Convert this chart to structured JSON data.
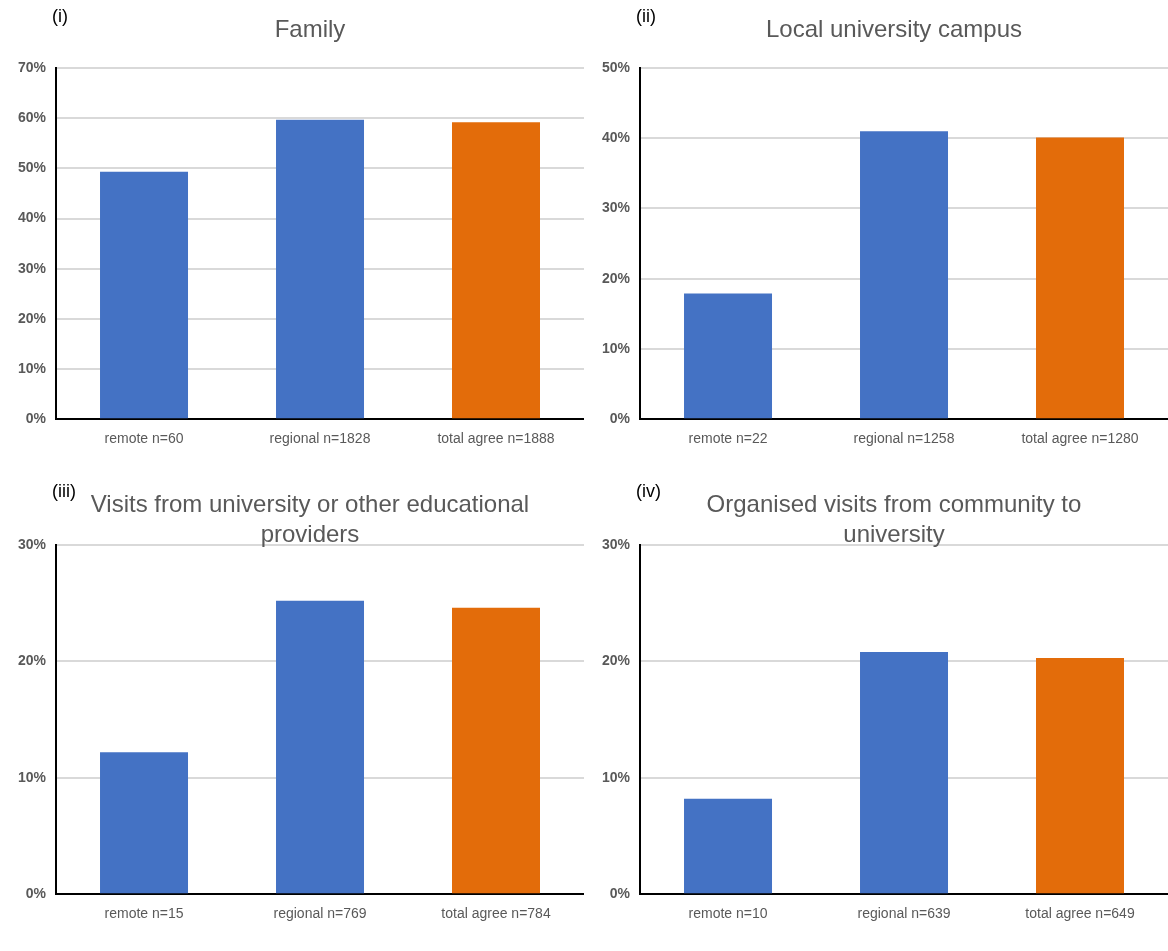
{
  "chart_data": [
    {
      "type": "bar",
      "title": "Family",
      "annotations": [
        "(i)"
      ],
      "categories": [
        "remote n=60",
        "regional n=1828",
        "total agree n=1888"
      ],
      "values": [
        49.3,
        59.7,
        59.2
      ],
      "colors": [
        "#4472c4",
        "#4472c4",
        "#e36c0a"
      ],
      "ylim": [
        0,
        70
      ],
      "yticks": [
        {
          "value": 0,
          "label": "0%"
        },
        {
          "value": 10,
          "label": "10%"
        },
        {
          "value": 20,
          "label": "20%"
        },
        {
          "value": 30,
          "label": "30%"
        },
        {
          "value": 40,
          "label": "40%"
        },
        {
          "value": 50,
          "label": "50%"
        },
        {
          "value": 60,
          "label": "60%"
        },
        {
          "value": 70,
          "label": "70%"
        }
      ],
      "grid": "y",
      "legend": false
    },
    {
      "type": "bar",
      "title": "Local university campus",
      "annotations": [
        "(ii)"
      ],
      "categories": [
        "remote n=22",
        "regional n=1258",
        "total agree n=1280"
      ],
      "values": [
        17.9,
        41,
        40.1
      ],
      "colors": [
        "#4472c4",
        "#4472c4",
        "#e36c0a"
      ],
      "ylim": [
        0,
        50
      ],
      "yticks": [
        {
          "value": 0,
          "label": "0%"
        },
        {
          "value": 10,
          "label": "10%"
        },
        {
          "value": 20,
          "label": "20%"
        },
        {
          "value": 30,
          "label": "30%"
        },
        {
          "value": 40,
          "label": "40%"
        },
        {
          "value": 50,
          "label": "50%"
        }
      ],
      "grid": "y",
      "legend": false
    },
    {
      "type": "bar",
      "title": "Visits from university or other educational providers",
      "annotations": [
        "(iii)"
      ],
      "categories": [
        "remote n=15",
        "regional n=769",
        "total agree n=784"
      ],
      "values": [
        12.2,
        25.2,
        24.6
      ],
      "colors": [
        "#4472c4",
        "#4472c4",
        "#e36c0a"
      ],
      "ylim": [
        0,
        30
      ],
      "yticks": [
        {
          "value": 0,
          "label": "0%"
        },
        {
          "value": 10,
          "label": "10%"
        },
        {
          "value": 20,
          "label": "20%"
        },
        {
          "value": 30,
          "label": "30%"
        }
      ],
      "grid": "y",
      "legend": false
    },
    {
      "type": "bar",
      "title": "Organised visits from community to university",
      "annotations": [
        "(iv)"
      ],
      "categories": [
        "remote n=10",
        "regional n=639",
        "total agree n=649"
      ],
      "values": [
        8.2,
        20.8,
        20.3
      ],
      "colors": [
        "#4472c4",
        "#4472c4",
        "#e36c0a"
      ],
      "ylim": [
        0,
        30
      ],
      "yticks": [
        {
          "value": 0,
          "label": "0%"
        },
        {
          "value": 10,
          "label": "10%"
        },
        {
          "value": 20,
          "label": "20%"
        },
        {
          "value": 30,
          "label": "30%"
        }
      ],
      "grid": "y",
      "legend": false
    }
  ]
}
